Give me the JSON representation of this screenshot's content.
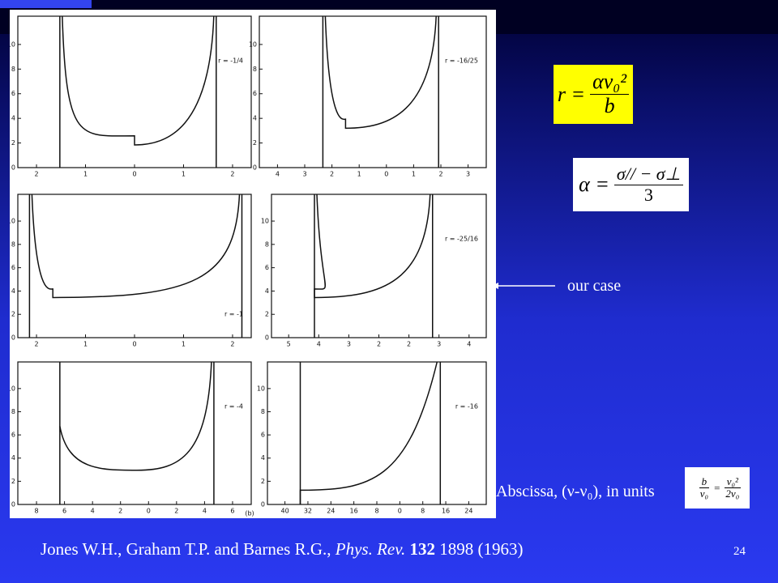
{
  "slide": {
    "figure": {
      "panels": [
        {
          "label": "r = -1/4",
          "yticks": [
            "0",
            "2",
            "4",
            "6",
            "8",
            "10"
          ],
          "xticks": [
            "2",
            "1",
            "0",
            "1",
            "2"
          ]
        },
        {
          "label": "r = -16/25",
          "yticks": [
            "0",
            "2",
            "4",
            "6",
            "8",
            "10"
          ],
          "xticks": [
            "4",
            "3",
            "2",
            "1",
            "0",
            "1",
            "2",
            "3"
          ]
        },
        {
          "label": "r = -1",
          "yticks": [
            "0",
            "2",
            "4",
            "6",
            "8",
            "10"
          ],
          "xticks": [
            "2",
            "1",
            "0",
            "1",
            "2"
          ]
        },
        {
          "label": "r = -25/16",
          "yticks": [
            "0",
            "2",
            "4",
            "6",
            "8",
            "10"
          ],
          "xticks": [
            "5",
            "4",
            "3",
            "2",
            "2",
            "3",
            "4"
          ]
        },
        {
          "label": "r = -4",
          "yticks": [
            "0",
            "2",
            "4",
            "6",
            "8",
            "10"
          ],
          "xticks": [
            "8",
            "6",
            "4",
            "2",
            "0",
            "2",
            "4",
            "6"
          ]
        },
        {
          "label": "r = -16",
          "yticks": [
            "0",
            "2",
            "4",
            "6",
            "8",
            "10"
          ],
          "xticks": [
            "40",
            "32",
            "24",
            "16",
            "8",
            "0",
            "8",
            "16",
            "24"
          ]
        }
      ],
      "footnote": "(b)"
    },
    "formula_r": {
      "lhs": "r =",
      "numerator": "αν₀²",
      "denominator": "b"
    },
    "formula_alpha": {
      "lhs": "α =",
      "numerator": "σ// − σ⊥",
      "denominator": "3"
    },
    "arrow_label": "our case",
    "abscissa": {
      "text": "Abscissa, (ν-ν₀),  in units",
      "formula": {
        "numerator_left": "b",
        "denominator_left": "ν₀",
        "equals": "=",
        "numerator_right": "ν₀²",
        "denominator_right": "2ν₀"
      }
    },
    "citation": {
      "authors": "Jones W.H., Graham T.P. and Barnes R.G.,",
      "journal": "Phys. Rev.",
      "volume": "132",
      "pages_year": "1898 (1963)"
    },
    "page_number": "24"
  }
}
